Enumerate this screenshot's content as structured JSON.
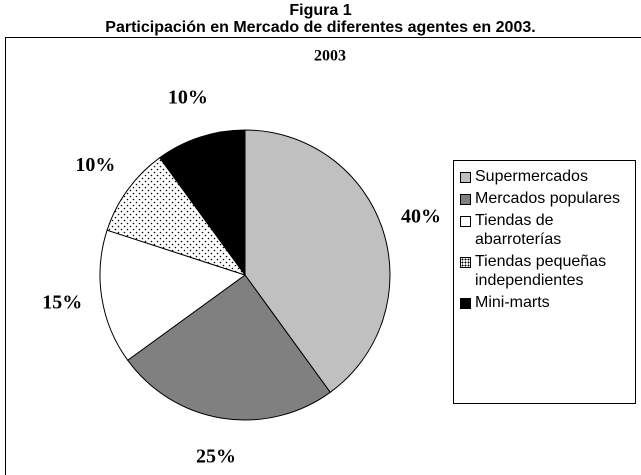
{
  "chart_data": {
    "type": "pie",
    "title": "Figura 1",
    "subtitle": "Participación en Mercado de diferentes agentes en 2003.",
    "inner_title": "2003",
    "categories": [
      "Supermercados",
      "Mercados populares",
      "Tiendas de abarroterías",
      "Tiendas pequeñas independientes",
      "Mini-marts"
    ],
    "values": [
      40,
      25,
      15,
      10,
      10
    ],
    "value_labels": [
      "40%",
      "25%",
      "15%",
      "10%",
      "10%"
    ],
    "colors": [
      "#c0c0c0",
      "#808080",
      "#ffffff",
      "#ffffff",
      "#000000"
    ],
    "patterns": [
      null,
      null,
      null,
      "dots",
      null
    ],
    "legend": "right"
  }
}
